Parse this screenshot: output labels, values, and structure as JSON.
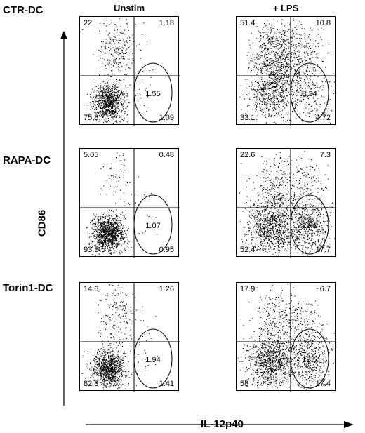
{
  "chart_data": {
    "type": "scatter",
    "column_headers": [
      "Unstim",
      "+ LPS"
    ],
    "row_labels": [
      "CTR-DC",
      "RAPA-DC",
      "Torin1-DC"
    ],
    "xlabel": "IL-12p40",
    "ylabel": "CD86",
    "panels": [
      {
        "row": "CTR-DC",
        "col": "Unstim",
        "q_ul": "22",
        "q_ur": "1.18",
        "q_ll": "75.8",
        "q_lr": "1.09",
        "gate": "1.55",
        "density": "low"
      },
      {
        "row": "CTR-DC",
        "col": "+ LPS",
        "q_ul": "51.4",
        "q_ur": "10.8",
        "q_ll": "33.1",
        "q_lr": "4.72",
        "gate": "8.34",
        "density": "high"
      },
      {
        "row": "RAPA-DC",
        "col": "Unstim",
        "q_ul": "5.05",
        "q_ur": "0.48",
        "q_ll": "93.5",
        "q_lr": "0.95",
        "gate": "1.07",
        "density": "low"
      },
      {
        "row": "RAPA-DC",
        "col": "+ LPS",
        "q_ul": "22.6",
        "q_ur": "7.3",
        "q_ll": "52.4",
        "q_lr": "17.7",
        "gate": "22.1",
        "density": "high"
      },
      {
        "row": "Torin1-DC",
        "col": "Unstim",
        "q_ul": "14.6",
        "q_ur": "1.26",
        "q_ll": "82.8",
        "q_lr": "1.41",
        "gate": "1.94",
        "density": "low"
      },
      {
        "row": "Torin1-DC",
        "col": "+ LPS",
        "q_ul": "17.9",
        "q_ur": "6.7",
        "q_ll": "58",
        "q_lr": "17.4",
        "gate": "18.5",
        "density": "high"
      }
    ]
  }
}
